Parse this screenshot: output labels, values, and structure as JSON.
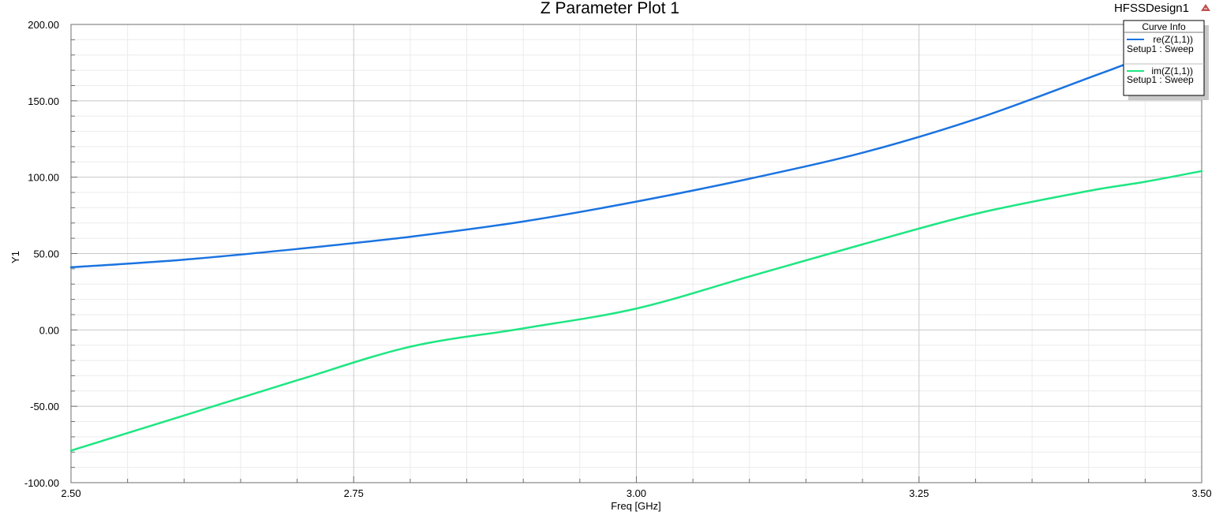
{
  "header": {
    "title": "Z Parameter Plot 1",
    "design_name": "HFSSDesign1",
    "logo_icon": "ansys-logo-icon"
  },
  "legend": {
    "title": "Curve Info",
    "entries": [
      {
        "name": "re(Z(1,1))",
        "sub": "Setup1 : Sweep",
        "color": "#1a73e0"
      },
      {
        "name": "im(Z(1,1))",
        "sub": "Setup1 : Sweep",
        "color": "#1ee682"
      }
    ]
  },
  "chart_data": {
    "type": "line",
    "title": "Z Parameter Plot 1",
    "xlabel": "Freq [GHz]",
    "ylabel": "Y1",
    "xlim": [
      2.5,
      3.5
    ],
    "ylim": [
      -100,
      200
    ],
    "x_ticks": [
      "2.50",
      "2.75",
      "3.00",
      "3.25",
      "3.50"
    ],
    "y_ticks": [
      "-100.00",
      "-50.00",
      "0.00",
      "50.00",
      "100.00",
      "150.00",
      "200.00"
    ],
    "grid": true,
    "legend_position": "top-right",
    "x": [
      2.5,
      2.6,
      2.7,
      2.8,
      2.9,
      3.0,
      3.1,
      3.2,
      3.3,
      3.4,
      3.45,
      3.5
    ],
    "series": [
      {
        "name": "re(Z(1,1))",
        "color": "#1a73e0",
        "values": [
          41,
          46,
          53,
          61,
          71,
          84,
          99,
          116,
          138,
          165,
          179,
          195
        ]
      },
      {
        "name": "im(Z(1,1))",
        "color": "#1ee682",
        "values": [
          -79,
          -56,
          -33,
          -11,
          1,
          14,
          35,
          56,
          76,
          91,
          97,
          104
        ]
      }
    ]
  }
}
